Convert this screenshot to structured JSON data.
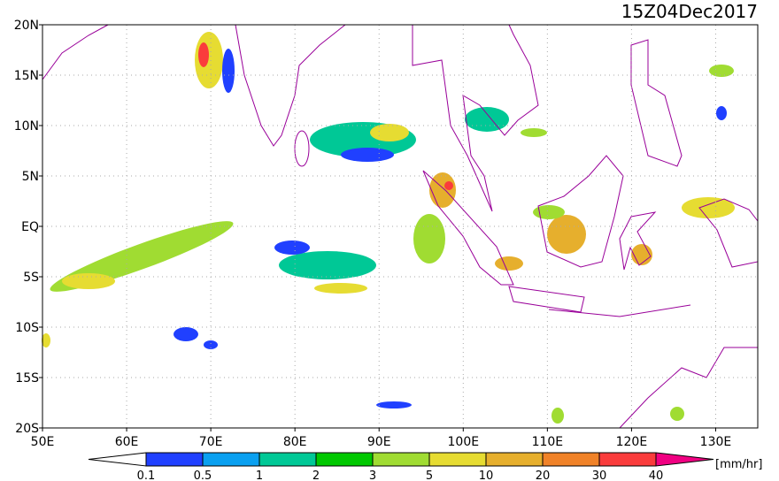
{
  "title": "15Z04Dec2017",
  "map": {
    "lonlim": [
      50,
      135
    ],
    "latlim": [
      -20,
      20
    ],
    "lonticks": [
      {
        "value": 50,
        "label": "50E"
      },
      {
        "value": 60,
        "label": "60E"
      },
      {
        "value": 70,
        "label": "70E"
      },
      {
        "value": 80,
        "label": "80E"
      },
      {
        "value": 90,
        "label": "90E"
      },
      {
        "value": 100,
        "label": "100E"
      },
      {
        "value": 110,
        "label": "110E"
      },
      {
        "value": 120,
        "label": "120E"
      },
      {
        "value": 130,
        "label": "130E"
      }
    ],
    "latticks": [
      {
        "value": 20,
        "label": "20N"
      },
      {
        "value": 15,
        "label": "15N"
      },
      {
        "value": 10,
        "label": "10N"
      },
      {
        "value": 5,
        "label": "5N"
      },
      {
        "value": 0,
        "label": "EQ"
      },
      {
        "value": -5,
        "label": "5S"
      },
      {
        "value": -10,
        "label": "10S"
      },
      {
        "value": -15,
        "label": "15S"
      },
      {
        "value": -20,
        "label": "20S"
      }
    ]
  },
  "colorbar": {
    "levels": [
      0.1,
      0.5,
      1,
      2,
      3,
      5,
      10,
      20,
      30,
      40
    ],
    "colors": [
      "#ffffff",
      "#2040ff",
      "#0aa0f0",
      "#00c896",
      "#00c800",
      "#a0dc32",
      "#e6dc32",
      "#e6af2d",
      "#f08228",
      "#fa3c3c",
      "#f00082"
    ],
    "unit": "[mm/hr]"
  }
}
